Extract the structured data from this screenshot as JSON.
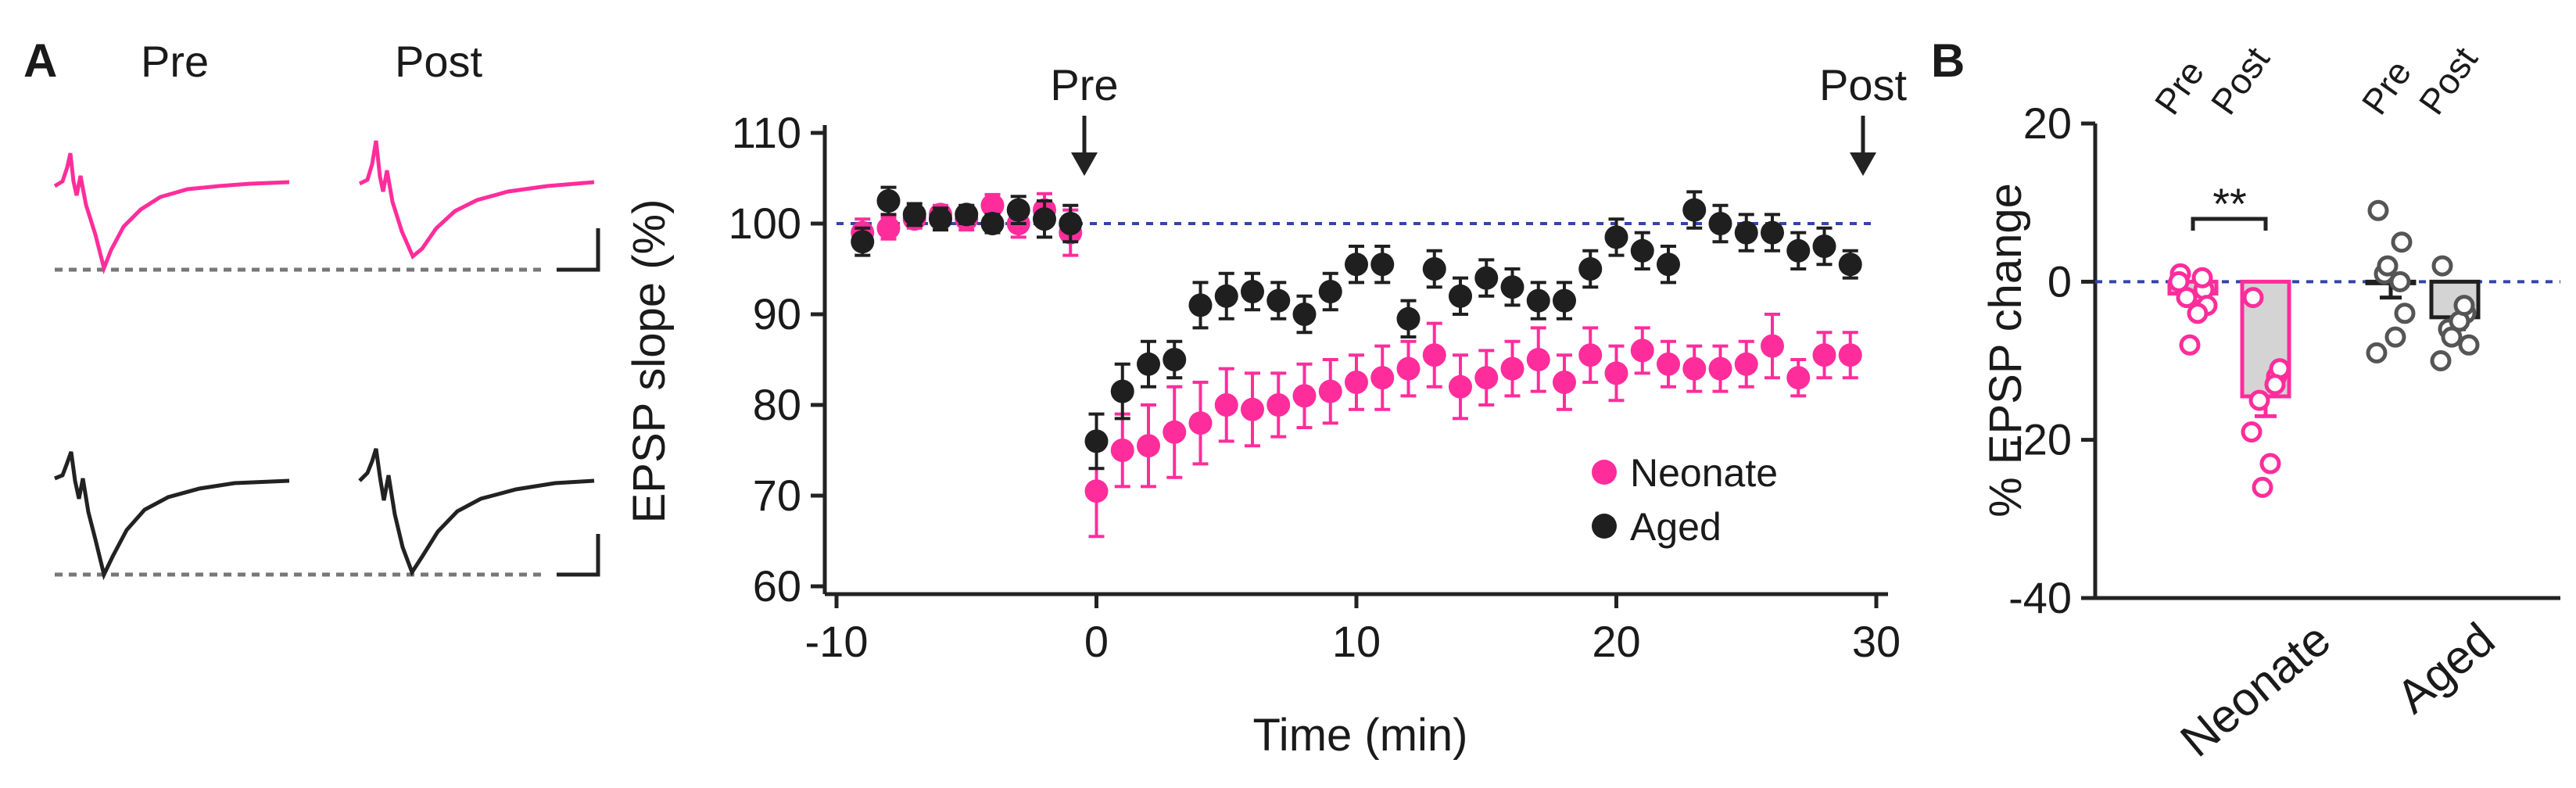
{
  "colors": {
    "neonate": "#ff2d9b",
    "aged": "#1f1f1f",
    "bar_fill": "#d4d4d4",
    "zero_line": "#3344aa",
    "ref_line": "#3344aa",
    "dotted": "#777777"
  },
  "panel_a": {
    "label": "A",
    "trace_headers": [
      "Pre",
      "Post"
    ],
    "arrow_pre_label": "Pre",
    "arrow_post_label": "Post"
  },
  "panel_b": {
    "label": "B",
    "group_labels": [
      "Neonate",
      "Aged"
    ],
    "bar_labels": [
      "Pre",
      "Post",
      "Pre",
      "Post"
    ],
    "significance": "**"
  },
  "chart_data": [
    {
      "type": "scatter",
      "xlabel": "Time (min)",
      "ylabel": "EPSP slope (%)",
      "xlim": [
        -10,
        30
      ],
      "ylim": [
        60,
        110
      ],
      "xticks": [
        "-10",
        "0",
        "10",
        "20",
        "30"
      ],
      "yticks": [
        "60",
        "70",
        "80",
        "90",
        "100",
        "110"
      ],
      "reference_line_y": 100,
      "legend_position": "bottom-right",
      "series": [
        {
          "name": "Neonate",
          "color": "#ff2d9b",
          "x": [
            -9,
            -8,
            -7,
            -6,
            -5,
            -4,
            -3,
            -2,
            -1,
            0,
            1,
            2,
            3,
            4,
            5,
            6,
            7,
            8,
            9,
            10,
            11,
            12,
            13,
            14,
            15,
            16,
            17,
            18,
            19,
            20,
            21,
            22,
            23,
            24,
            25,
            26,
            27,
            28,
            29
          ],
          "y": [
            99,
            99.5,
            100.5,
            101,
            100.5,
            102,
            100,
            101.5,
            99,
            70.5,
            75,
            75.5,
            77,
            78,
            80,
            79.5,
            80,
            81,
            81.5,
            82.5,
            83,
            84,
            85.5,
            82,
            83,
            84,
            85,
            82.5,
            85.5,
            83.5,
            86,
            84.5,
            84,
            84,
            84.5,
            86.5,
            83,
            85.5,
            85.5
          ],
          "err": [
            1.5,
            1.2,
            1.0,
            1.0,
            1.2,
            1.2,
            1.5,
            1.8,
            2.5,
            5.0,
            4.0,
            4.5,
            5.0,
            4.5,
            4.0,
            4.0,
            3.5,
            3.5,
            3.5,
            3.0,
            3.5,
            3.0,
            3.5,
            3.5,
            3.0,
            3.0,
            3.5,
            3.0,
            3.0,
            3.0,
            2.5,
            2.5,
            2.5,
            2.5,
            2.5,
            3.5,
            2.0,
            2.5,
            2.5
          ]
        },
        {
          "name": "Aged",
          "color": "#1f1f1f",
          "x": [
            -9,
            -8,
            -7,
            -6,
            -5,
            -4,
            -3,
            -2,
            -1,
            0,
            1,
            2,
            3,
            4,
            5,
            6,
            7,
            8,
            9,
            10,
            11,
            12,
            13,
            14,
            15,
            16,
            17,
            18,
            19,
            20,
            21,
            22,
            23,
            24,
            25,
            26,
            27,
            28,
            29
          ],
          "y": [
            98,
            102.5,
            101,
            100.5,
            101,
            100,
            101.5,
            100.5,
            100,
            76,
            81.5,
            84.5,
            85,
            91,
            92,
            92.5,
            91.5,
            90,
            92.5,
            95.5,
            95.5,
            89.5,
            95,
            92,
            94,
            93,
            91.5,
            91.5,
            95,
            98.5,
            97,
            95.5,
            101.5,
            100,
            99,
            99,
            97,
            97.5,
            95.5
          ],
          "err": [
            1.5,
            1.5,
            1.2,
            1.2,
            1.0,
            1.0,
            1.5,
            2.0,
            2.0,
            3.0,
            3.0,
            2.5,
            2.0,
            2.5,
            2.5,
            2.0,
            2.0,
            2.0,
            2.0,
            2.0,
            2.0,
            2.0,
            2.0,
            2.0,
            2.0,
            2.0,
            2.0,
            2.0,
            2.0,
            2.0,
            2.0,
            2.0,
            2.0,
            2.0,
            2.0,
            2.0,
            2.0,
            2.0,
            1.5
          ]
        }
      ]
    },
    {
      "type": "bar",
      "ylabel": "% EPSP change",
      "ylim": [
        -40,
        20
      ],
      "yticks": [
        "20",
        "0",
        "-20",
        "-40"
      ],
      "categories": [
        "Neonate Pre",
        "Neonate Post",
        "Aged Pre",
        "Aged Post"
      ],
      "values": [
        -1.5,
        -14.5,
        0,
        -4.5
      ],
      "err": [
        1.0,
        2.5,
        2.0,
        1.5
      ],
      "bar_colors": [
        "#ff2d9b",
        "#ff2d9b",
        "#1f1f1f",
        "#1f1f1f"
      ],
      "points": [
        [
          1,
          -1,
          -2,
          -3,
          0,
          -4,
          -8,
          0.5
        ],
        [
          -2,
          -12,
          -15,
          -11,
          -19,
          -23,
          -26,
          -13
        ],
        [
          9,
          5,
          1,
          -4,
          -9,
          -7,
          2,
          0
        ],
        [
          2,
          -4,
          -6,
          -8,
          -10,
          -5,
          -7,
          -3
        ]
      ]
    }
  ]
}
